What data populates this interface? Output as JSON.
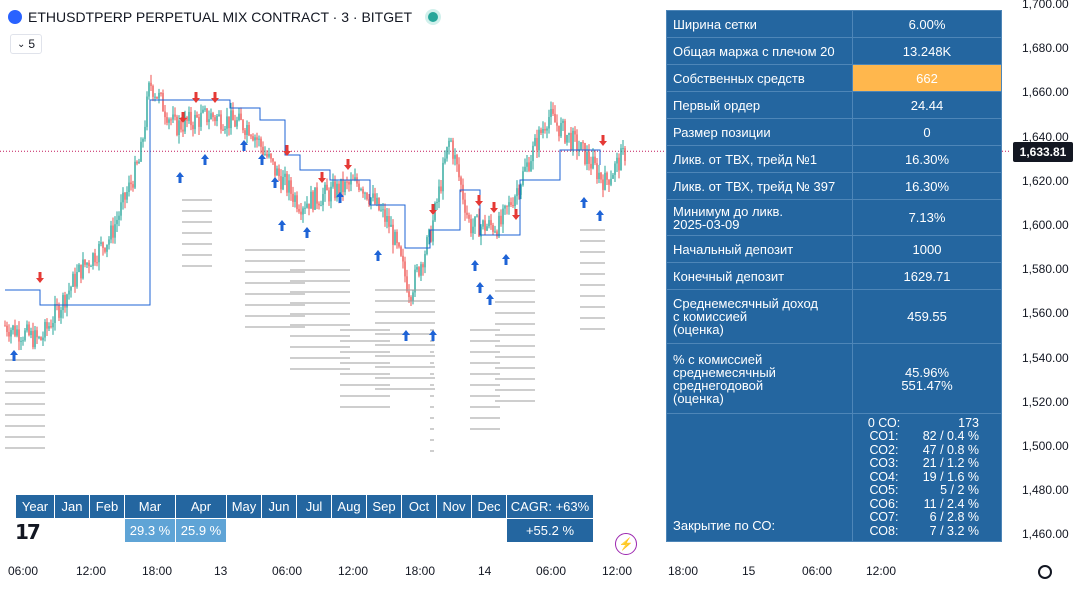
{
  "header": {
    "symbol": "ETHUSDTPERP PERPETUAL MIX CONTRACT · 3 · BITGET",
    "interval_value": "5"
  },
  "price": {
    "current_label": "1,633.81",
    "current_value": 1633.81
  },
  "y_axis": {
    "ticks": [
      "1,700.00",
      "1,680.00",
      "1,660.00",
      "1,640.00",
      "1,620.00",
      "1,600.00",
      "1,580.00",
      "1,560.00",
      "1,540.00",
      "1,520.00",
      "1,500.00",
      "1,480.00",
      "1,460.00"
    ]
  },
  "x_axis": {
    "ticks": [
      "06:00",
      "12:00",
      "18:00",
      "13",
      "06:00",
      "12:00",
      "18:00",
      "14",
      "06:00",
      "12:00",
      "18:00",
      "15",
      "06:00",
      "12:00"
    ]
  },
  "stats": {
    "rows": [
      {
        "label": "Ширина сетки",
        "value": "6.00%"
      },
      {
        "label": "Общая маржа с плечом 20",
        "value": "13.248K"
      },
      {
        "label": "Собственных средств",
        "value": "662"
      },
      {
        "label": "Первый ордер",
        "value": "24.44"
      },
      {
        "label": "Размер позиции",
        "value": "0"
      },
      {
        "label": "Ликв. от ТВХ, трейд №1",
        "value": "16.30%"
      },
      {
        "label": "Ликв. от ТВХ, трейд № 397",
        "value": "16.30%"
      },
      {
        "label": "Минимум до ликв.\n2025-03-09",
        "value": "7.13%"
      },
      {
        "label": "Начальный депозит",
        "value": "1000"
      },
      {
        "label": "Конечный депозит",
        "value": "1629.71"
      },
      {
        "label": "Среднемесячный доход\nс комиссией\n(оценка)",
        "value": "459.55"
      },
      {
        "label": "% с комиссией\nсреднемесячный\nсреднегодовой\n(оценка)",
        "value": "45.96%\n551.47%"
      }
    ],
    "closing_label": "Закрытие по СО:",
    "co": [
      {
        "k": "0 СО:",
        "v": "173"
      },
      {
        "k": "СО1:",
        "v": "82 / 0.4 %"
      },
      {
        "k": "СО2:",
        "v": "47 / 0.8 %"
      },
      {
        "k": "СО3:",
        "v": "21 / 1.2 %"
      },
      {
        "k": "СО4:",
        "v": "19 / 1.6 %"
      },
      {
        "k": "СО5:",
        "v": "5 / 2 %"
      },
      {
        "k": "СО6:",
        "v": "11 / 2.4 %"
      },
      {
        "k": "СО7:",
        "v": "6 / 2.8 %"
      },
      {
        "k": "СО8:",
        "v": "7 / 3.2 %"
      }
    ],
    "highlight_color": "#ffb74d",
    "cell_color": "#2466a0"
  },
  "months": {
    "headers": [
      "Year",
      "Jan",
      "Feb",
      "Mar",
      "Apr",
      "May",
      "Jun",
      "Jul",
      "Aug",
      "Sep",
      "Oct",
      "Nov",
      "Dec",
      "CAGR: +63%"
    ],
    "values": [
      "",
      "",
      "",
      "29.3 %",
      "25.9 %",
      "",
      "",
      "",
      "",
      "",
      "",
      "",
      "",
      "+55.2 %"
    ]
  },
  "icons": {
    "logo": "tradingview-logo",
    "alert": "lightning-icon"
  }
}
